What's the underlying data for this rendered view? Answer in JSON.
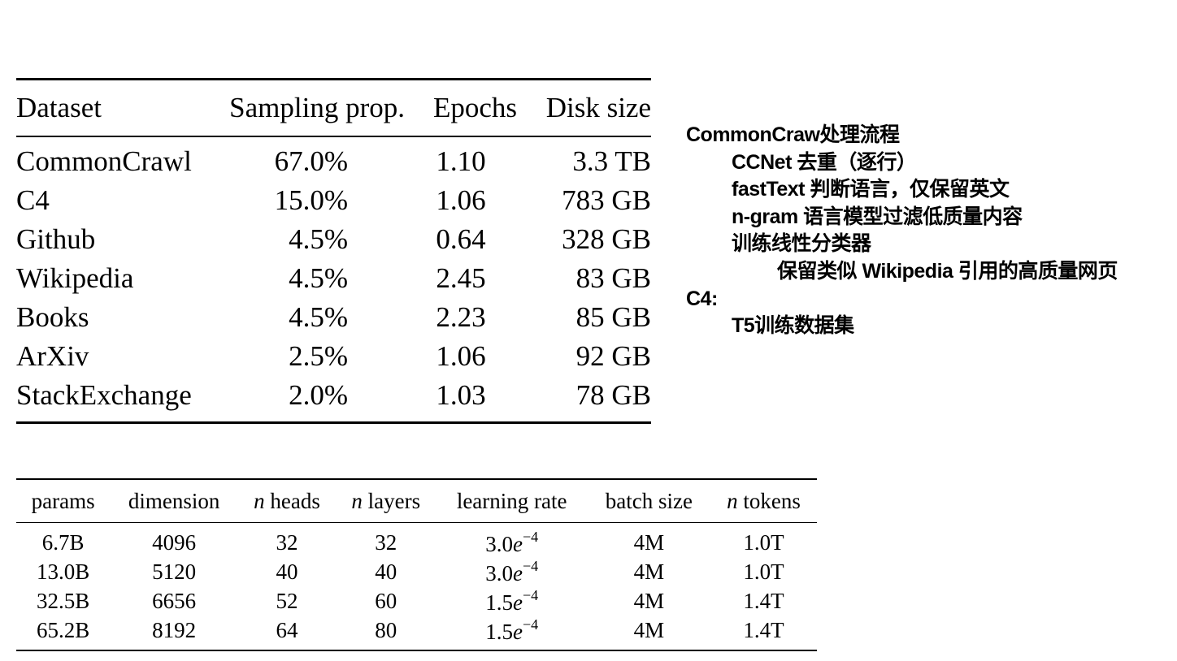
{
  "dataset_table": {
    "headers": [
      "Dataset",
      "Sampling prop.",
      "Epochs",
      "Disk size"
    ],
    "rows": [
      [
        "CommonCrawl",
        "67.0%",
        "1.10",
        "3.3 TB"
      ],
      [
        "C4",
        "15.0%",
        "1.06",
        "783 GB"
      ],
      [
        "Github",
        "4.5%",
        "0.64",
        "328 GB"
      ],
      [
        "Wikipedia",
        "4.5%",
        "2.45",
        "83 GB"
      ],
      [
        "Books",
        "4.5%",
        "2.23",
        "85 GB"
      ],
      [
        "ArXiv",
        "2.5%",
        "1.06",
        "92 GB"
      ],
      [
        "StackExchange",
        "2.0%",
        "1.03",
        "78 GB"
      ]
    ]
  },
  "model_table": {
    "headers": {
      "params": "params",
      "dimension": "dimension",
      "n_heads": {
        "var": "n",
        "label": "heads"
      },
      "n_layers": {
        "var": "n",
        "label": "layers"
      },
      "learning_rate": "learning rate",
      "batch_size": "batch size",
      "n_tokens": {
        "var": "n",
        "label": "tokens"
      }
    },
    "rows": [
      {
        "params": "6.7B",
        "dimension": "4096",
        "heads": "32",
        "layers": "32",
        "lr_base": "3.0",
        "lr_e": "e",
        "lr_exp": "−4",
        "batch": "4M",
        "tokens": "1.0T"
      },
      {
        "params": "13.0B",
        "dimension": "5120",
        "heads": "40",
        "layers": "40",
        "lr_base": "3.0",
        "lr_e": "e",
        "lr_exp": "−4",
        "batch": "4M",
        "tokens": "1.0T"
      },
      {
        "params": "32.5B",
        "dimension": "6656",
        "heads": "52",
        "layers": "60",
        "lr_base": "1.5",
        "lr_e": "e",
        "lr_exp": "−4",
        "batch": "4M",
        "tokens": "1.4T"
      },
      {
        "params": "65.2B",
        "dimension": "8192",
        "heads": "64",
        "layers": "80",
        "lr_base": "1.5",
        "lr_e": "e",
        "lr_exp": "−4",
        "batch": "4M",
        "tokens": "1.4T"
      }
    ]
  },
  "notes": {
    "line1": "CommonCraw处理流程",
    "line2": "CCNet 去重（逐行）",
    "line3": "fastText 判断语言，仅保留英文",
    "line4": "n-gram 语言模型过滤低质量内容",
    "line5": "训练线性分类器",
    "line6": "保留类似 Wikipedia 引用的高质量网页",
    "line7": "C4:",
    "line8": "T5训练数据集"
  }
}
